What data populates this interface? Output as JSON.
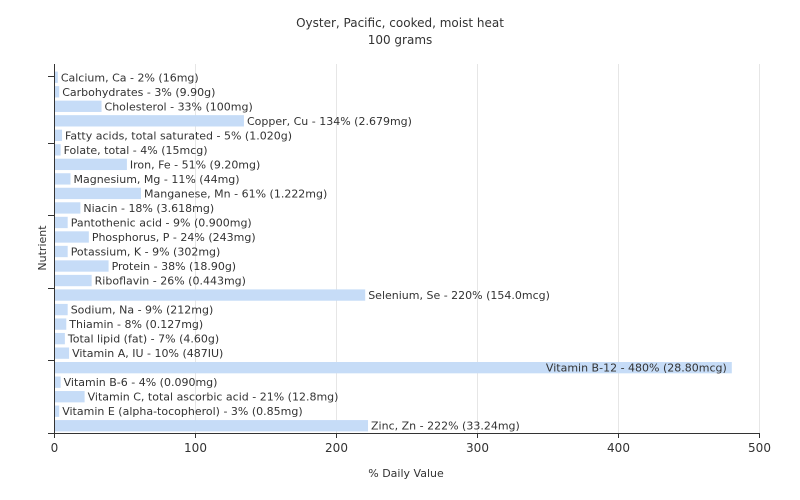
{
  "chart_data": {
    "type": "bar",
    "orientation": "horizontal",
    "title": "Oyster, Pacific, cooked, moist heat",
    "subtitle": "100 grams",
    "xlabel": "% Daily Value",
    "ylabel": "Nutrient",
    "xlim": [
      0,
      500
    ],
    "xticks": [
      0,
      100,
      200,
      300,
      400,
      500
    ],
    "grid": true,
    "bar_color": "#c6dcf7",
    "categories": [
      "Calcium, Ca",
      "Carbohydrates",
      "Cholesterol",
      "Copper, Cu",
      "Fatty acids, total saturated",
      "Folate, total",
      "Iron, Fe",
      "Magnesium, Mg",
      "Manganese, Mn",
      "Niacin",
      "Pantothenic acid",
      "Phosphorus, P",
      "Potassium, K",
      "Protein",
      "Riboflavin",
      "Selenium, Se",
      "Sodium, Na",
      "Thiamin",
      "Total lipid (fat)",
      "Vitamin A, IU",
      "Vitamin B-12",
      "Vitamin B-6",
      "Vitamin C, total ascorbic acid",
      "Vitamin E (alpha-tocopherol)",
      "Zinc, Zn"
    ],
    "values": [
      2,
      3,
      33,
      134,
      5,
      4,
      51,
      11,
      61,
      18,
      9,
      24,
      9,
      38,
      26,
      220,
      9,
      8,
      7,
      10,
      480,
      4,
      21,
      3,
      222
    ],
    "labels": [
      "Calcium, Ca - 2% (16mg)",
      "Carbohydrates - 3% (9.90g)",
      "Cholesterol - 33% (100mg)",
      "Copper, Cu - 134% (2.679mg)",
      "Fatty acids, total saturated - 5% (1.020g)",
      "Folate, total - 4% (15mcg)",
      "Iron, Fe - 51% (9.20mg)",
      "Magnesium, Mg - 11% (44mg)",
      "Manganese, Mn - 61% (1.222mg)",
      "Niacin - 18% (3.618mg)",
      "Pantothenic acid - 9% (0.900mg)",
      "Phosphorus, P - 24% (243mg)",
      "Potassium, K - 9% (302mg)",
      "Protein - 38% (18.90g)",
      "Riboflavin - 26% (0.443mg)",
      "Selenium, Se - 220% (154.0mcg)",
      "Sodium, Na - 9% (212mg)",
      "Thiamin - 8% (0.127mg)",
      "Total lipid (fat) - 7% (4.60g)",
      "Vitamin A, IU - 10% (487IU)",
      "Vitamin B-12 - 480% (28.80mcg)",
      "Vitamin B-6 - 4% (0.090mg)",
      "Vitamin C, total ascorbic acid - 21% (12.8mg)",
      "Vitamin E (alpha-tocopherol) - 3% (0.85mg)",
      "Zinc, Zn - 222% (33.24mg)"
    ]
  }
}
